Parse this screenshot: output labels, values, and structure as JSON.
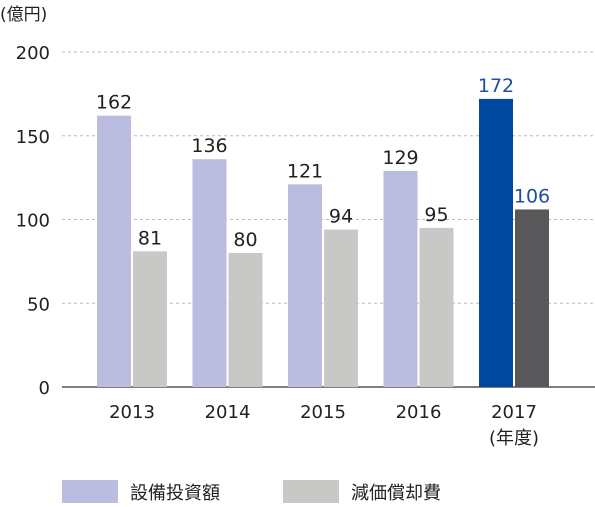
{
  "chart_data": {
    "type": "bar",
    "unit_label": "(億円)",
    "categories": [
      "2013",
      "2014",
      "2015",
      "2016",
      "2017"
    ],
    "category_sublabels": [
      "",
      "",
      "",
      "",
      "(年度)"
    ],
    "ylim": [
      0,
      200
    ],
    "yticks": [
      0,
      50,
      100,
      150,
      200
    ],
    "grid": true,
    "legend_position": "bottom-left",
    "series": [
      {
        "name": "設備投資額",
        "values": [
          162,
          136,
          121,
          129,
          172
        ],
        "color": "#babde0",
        "highlight_color": "#0047a0"
      },
      {
        "name": "減価償却費",
        "values": [
          81,
          80,
          94,
          95,
          106
        ],
        "color": "#c8c9c7",
        "highlight_color": "#58585a"
      }
    ],
    "highlight_index": 4,
    "label_color": "#222222",
    "highlight_label_color": "#1f4e9c"
  }
}
